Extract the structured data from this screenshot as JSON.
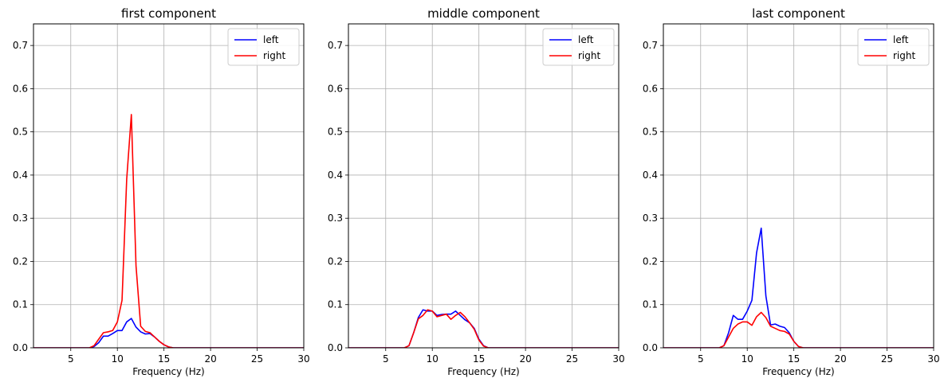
{
  "chart_data": [
    {
      "type": "line",
      "title": "first component",
      "xlabel": "Frequency (Hz)",
      "ylabel": "",
      "xlim": [
        1,
        30
      ],
      "ylim": [
        0,
        0.75
      ],
      "xticks": [
        5,
        10,
        15,
        20,
        25,
        30
      ],
      "yticks": [
        0.0,
        0.1,
        0.2,
        0.3,
        0.4,
        0.5,
        0.6,
        0.7
      ],
      "grid": true,
      "legend_position": "top-right",
      "series": [
        {
          "name": "left",
          "color": "#0000ff",
          "points": [
            [
              1,
              0
            ],
            [
              7,
              0
            ],
            [
              7.5,
              0.003
            ],
            [
              8,
              0.012
            ],
            [
              8.5,
              0.027
            ],
            [
              9,
              0.027
            ],
            [
              9.5,
              0.033
            ],
            [
              10,
              0.04
            ],
            [
              10.5,
              0.04
            ],
            [
              11,
              0.06
            ],
            [
              11.5,
              0.068
            ],
            [
              12,
              0.048
            ],
            [
              12.5,
              0.037
            ],
            [
              13,
              0.032
            ],
            [
              13.5,
              0.033
            ],
            [
              14,
              0.025
            ],
            [
              14.5,
              0.015
            ],
            [
              15,
              0.007
            ],
            [
              15.5,
              0.002
            ],
            [
              16,
              0
            ],
            [
              30,
              0
            ]
          ]
        },
        {
          "name": "right",
          "color": "#ff0000",
          "points": [
            [
              1,
              0
            ],
            [
              7,
              0
            ],
            [
              7.5,
              0.005
            ],
            [
              8,
              0.02
            ],
            [
              8.5,
              0.035
            ],
            [
              9,
              0.037
            ],
            [
              9.5,
              0.04
            ],
            [
              10,
              0.06
            ],
            [
              10.5,
              0.11
            ],
            [
              11,
              0.39
            ],
            [
              11.5,
              0.54
            ],
            [
              12,
              0.19
            ],
            [
              12.5,
              0.05
            ],
            [
              13,
              0.038
            ],
            [
              13.5,
              0.035
            ],
            [
              14,
              0.025
            ],
            [
              14.5,
              0.015
            ],
            [
              15,
              0.007
            ],
            [
              15.5,
              0.002
            ],
            [
              16,
              0
            ],
            [
              30,
              0
            ]
          ]
        }
      ]
    },
    {
      "type": "line",
      "title": "middle component",
      "xlabel": "Frequency (Hz)",
      "ylabel": "",
      "xlim": [
        1,
        30
      ],
      "ylim": [
        0,
        0.75
      ],
      "xticks": [
        5,
        10,
        15,
        20,
        25,
        30
      ],
      "yticks": [
        0.0,
        0.1,
        0.2,
        0.3,
        0.4,
        0.5,
        0.6,
        0.7
      ],
      "grid": true,
      "legend_position": "top-right",
      "series": [
        {
          "name": "left",
          "color": "#0000ff",
          "points": [
            [
              1,
              0
            ],
            [
              7,
              0
            ],
            [
              7.5,
              0.005
            ],
            [
              8,
              0.035
            ],
            [
              8.5,
              0.07
            ],
            [
              9,
              0.088
            ],
            [
              9.5,
              0.085
            ],
            [
              10,
              0.085
            ],
            [
              10.5,
              0.075
            ],
            [
              11,
              0.077
            ],
            [
              11.5,
              0.078
            ],
            [
              12,
              0.078
            ],
            [
              12.5,
              0.085
            ],
            [
              13,
              0.075
            ],
            [
              13.5,
              0.065
            ],
            [
              14,
              0.058
            ],
            [
              14.5,
              0.045
            ],
            [
              15,
              0.02
            ],
            [
              15.5,
              0.005
            ],
            [
              16,
              0
            ],
            [
              30,
              0
            ]
          ]
        },
        {
          "name": "right",
          "color": "#ff0000",
          "points": [
            [
              1,
              0
            ],
            [
              7,
              0
            ],
            [
              7.5,
              0.005
            ],
            [
              8,
              0.035
            ],
            [
              8.5,
              0.067
            ],
            [
              9,
              0.075
            ],
            [
              9.5,
              0.088
            ],
            [
              10,
              0.085
            ],
            [
              10.5,
              0.072
            ],
            [
              11,
              0.075
            ],
            [
              11.5,
              0.078
            ],
            [
              12,
              0.066
            ],
            [
              12.5,
              0.075
            ],
            [
              13,
              0.082
            ],
            [
              13.5,
              0.072
            ],
            [
              14,
              0.058
            ],
            [
              14.5,
              0.043
            ],
            [
              15,
              0.018
            ],
            [
              15.5,
              0.004
            ],
            [
              16,
              0
            ],
            [
              30,
              0
            ]
          ]
        }
      ]
    },
    {
      "type": "line",
      "title": "last component",
      "xlabel": "Frequency (Hz)",
      "ylabel": "",
      "xlim": [
        1,
        30
      ],
      "ylim": [
        0,
        0.75
      ],
      "xticks": [
        5,
        10,
        15,
        20,
        25,
        30
      ],
      "yticks": [
        0.0,
        0.1,
        0.2,
        0.3,
        0.4,
        0.5,
        0.6,
        0.7
      ],
      "grid": true,
      "legend_position": "top-right",
      "series": [
        {
          "name": "left",
          "color": "#0000ff",
          "points": [
            [
              1,
              0
            ],
            [
              7,
              0
            ],
            [
              7.5,
              0.005
            ],
            [
              8,
              0.035
            ],
            [
              8.5,
              0.075
            ],
            [
              9,
              0.066
            ],
            [
              9.5,
              0.066
            ],
            [
              10,
              0.085
            ],
            [
              10.5,
              0.11
            ],
            [
              11,
              0.22
            ],
            [
              11.5,
              0.277
            ],
            [
              12,
              0.12
            ],
            [
              12.5,
              0.053
            ],
            [
              13,
              0.055
            ],
            [
              13.5,
              0.05
            ],
            [
              14,
              0.047
            ],
            [
              14.5,
              0.035
            ],
            [
              15,
              0.015
            ],
            [
              15.5,
              0.003
            ],
            [
              16,
              0
            ],
            [
              30,
              0
            ]
          ]
        },
        {
          "name": "right",
          "color": "#ff0000",
          "points": [
            [
              1,
              0
            ],
            [
              7,
              0
            ],
            [
              7.5,
              0.005
            ],
            [
              8,
              0.025
            ],
            [
              8.5,
              0.045
            ],
            [
              9,
              0.055
            ],
            [
              9.5,
              0.06
            ],
            [
              10,
              0.06
            ],
            [
              10.5,
              0.052
            ],
            [
              11,
              0.072
            ],
            [
              11.5,
              0.082
            ],
            [
              12,
              0.07
            ],
            [
              12.5,
              0.05
            ],
            [
              13,
              0.045
            ],
            [
              13.5,
              0.04
            ],
            [
              14,
              0.038
            ],
            [
              14.5,
              0.032
            ],
            [
              15,
              0.015
            ],
            [
              15.5,
              0.003
            ],
            [
              16,
              0
            ],
            [
              30,
              0
            ]
          ]
        }
      ]
    }
  ]
}
